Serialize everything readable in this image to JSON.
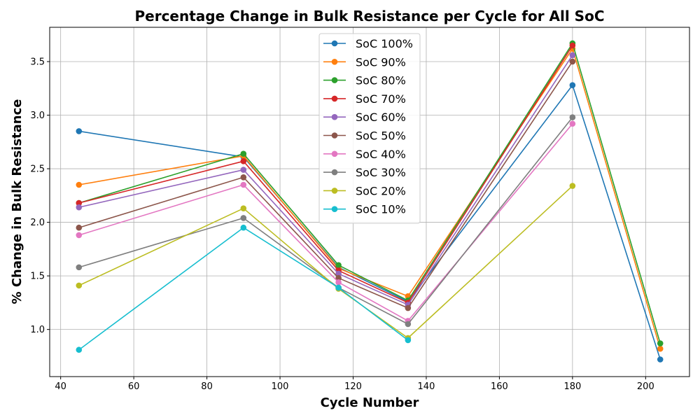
{
  "chart_data": {
    "type": "line",
    "title": "Percentage Change in Bulk Resistance per Cycle for All SoC",
    "xlabel": "Cycle Number",
    "ylabel": "% Change in Bulk Resistance",
    "xlim": [
      37,
      212
    ],
    "ylim": [
      0.56,
      3.82
    ],
    "xticks": [
      40,
      60,
      80,
      100,
      120,
      140,
      160,
      180,
      200
    ],
    "yticks": [
      1.0,
      1.5,
      2.0,
      2.5,
      3.0,
      3.5
    ],
    "grid": true,
    "legend_position": "top-center",
    "series": [
      {
        "name": "SoC 100%",
        "color": "#1f77b4",
        "points": [
          [
            45,
            2.85
          ],
          [
            90,
            2.61
          ],
          [
            116,
            1.58
          ],
          [
            135,
            1.26
          ],
          [
            180,
            3.28
          ],
          [
            204,
            0.72
          ]
        ]
      },
      {
        "name": "SoC 90%",
        "color": "#ff7f0e",
        "points": [
          [
            45,
            2.35
          ],
          [
            90,
            2.62
          ],
          [
            116,
            1.57
          ],
          [
            135,
            1.31
          ],
          [
            180,
            3.62
          ],
          [
            204,
            0.82
          ]
        ]
      },
      {
        "name": "SoC 80%",
        "color": "#2ca02c",
        "points": [
          [
            45,
            2.18
          ],
          [
            90,
            2.64
          ],
          [
            116,
            1.6
          ],
          [
            135,
            1.27
          ],
          [
            180,
            3.67
          ],
          [
            204,
            0.87
          ]
        ]
      },
      {
        "name": "SoC 70%",
        "color": "#d62728",
        "points": [
          [
            45,
            2.18
          ],
          [
            90,
            2.57
          ],
          [
            116,
            1.55
          ],
          [
            135,
            1.25
          ],
          [
            180,
            3.65
          ]
        ]
      },
      {
        "name": "SoC 60%",
        "color": "#9467bd",
        "points": [
          [
            45,
            2.14
          ],
          [
            90,
            2.49
          ],
          [
            116,
            1.52
          ],
          [
            135,
            1.23
          ],
          [
            180,
            3.56
          ]
        ]
      },
      {
        "name": "SoC 50%",
        "color": "#8c564b",
        "points": [
          [
            45,
            1.95
          ],
          [
            90,
            2.42
          ],
          [
            116,
            1.48
          ],
          [
            135,
            1.2
          ],
          [
            180,
            3.5
          ]
        ]
      },
      {
        "name": "SoC 40%",
        "color": "#e377c2",
        "points": [
          [
            45,
            1.88
          ],
          [
            90,
            2.35
          ],
          [
            116,
            1.44
          ],
          [
            135,
            1.08
          ],
          [
            180,
            2.92
          ]
        ]
      },
      {
        "name": "SoC 30%",
        "color": "#7f7f7f",
        "points": [
          [
            45,
            1.58
          ],
          [
            90,
            2.04
          ],
          [
            116,
            1.39
          ],
          [
            135,
            1.05
          ],
          [
            180,
            2.98
          ]
        ]
      },
      {
        "name": "SoC 20%",
        "color": "#bcbd22",
        "points": [
          [
            45,
            1.41
          ],
          [
            90,
            2.13
          ],
          [
            116,
            1.38
          ],
          [
            135,
            0.92
          ],
          [
            180,
            2.34
          ]
        ]
      },
      {
        "name": "SoC 10%",
        "color": "#17becf",
        "points": [
          [
            45,
            0.81
          ],
          [
            90,
            1.95
          ],
          [
            116,
            1.39
          ],
          [
            135,
            0.9
          ]
        ]
      }
    ]
  }
}
